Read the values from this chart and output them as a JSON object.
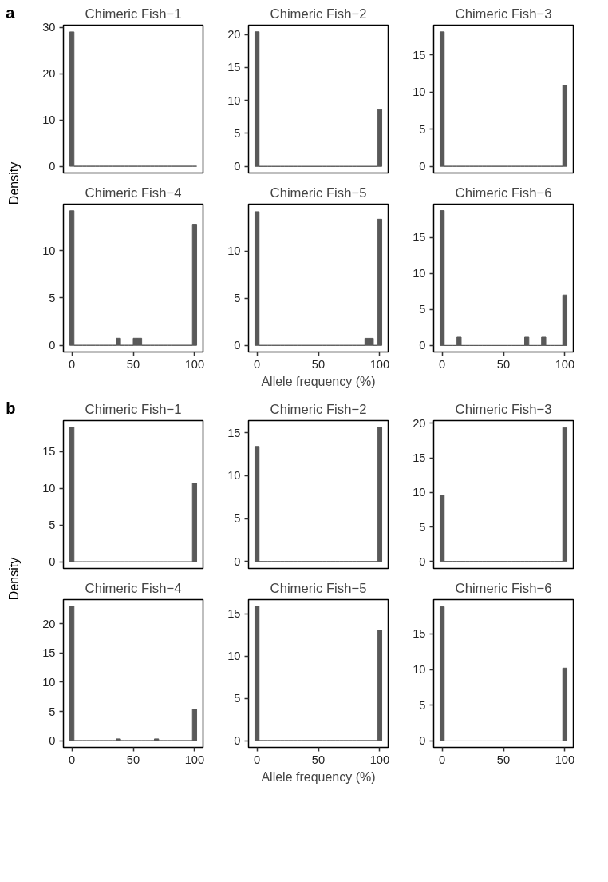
{
  "chart_data": [
    {
      "type": "histogram",
      "title": "Chimeric Fish−1",
      "ylabel": "Density",
      "annotations": [
        "a"
      ],
      "color": "#595959",
      "bins": [
        -1.72,
        1.72,
        5.17,
        8.62,
        12.07,
        15.52,
        18.97,
        22.41,
        25.86,
        29.31,
        32.76,
        36.21,
        39.66,
        43.1,
        46.55,
        50.0,
        53.45,
        56.9,
        60.34,
        63.79,
        67.24,
        70.69,
        74.14,
        77.59,
        81.03,
        84.48,
        87.93,
        91.38,
        94.83,
        98.28,
        101.72
      ],
      "values": [
        29,
        0,
        0,
        0,
        0,
        0,
        0,
        0,
        0,
        0,
        0,
        0,
        0,
        0,
        0,
        0,
        0,
        0,
        0,
        0,
        0,
        0,
        0,
        0,
        0,
        0,
        0,
        0,
        0,
        0
      ],
      "xlim": [
        -6.9,
        106.9
      ],
      "ylim": [
        -1.45,
        30.45
      ],
      "yticks": [
        0,
        10,
        20,
        30
      ],
      "grid": false,
      "tick_labels": "y"
    },
    {
      "type": "histogram",
      "title": "Chimeric Fish−2",
      "color": "#595959",
      "bins": [
        -1.72,
        1.72,
        5.17,
        8.62,
        12.07,
        15.52,
        18.97,
        22.41,
        25.86,
        29.31,
        32.76,
        36.21,
        39.66,
        43.1,
        46.55,
        50.0,
        53.45,
        56.9,
        60.34,
        63.79,
        67.24,
        70.69,
        74.14,
        77.59,
        81.03,
        84.48,
        87.93,
        91.38,
        94.83,
        98.28,
        101.72
      ],
      "values": [
        20.4,
        0,
        0,
        0,
        0,
        0,
        0,
        0,
        0,
        0,
        0,
        0,
        0,
        0,
        0,
        0,
        0,
        0,
        0,
        0,
        0,
        0,
        0,
        0,
        0,
        0,
        0,
        0,
        0,
        8.6
      ],
      "xlim": [
        -6.9,
        106.9
      ],
      "ylim": [
        -1.0,
        21.4
      ],
      "yticks": [
        0,
        5,
        10,
        15,
        20
      ],
      "grid": false,
      "tick_labels": "y"
    },
    {
      "type": "histogram",
      "title": "Chimeric Fish−3",
      "color": "#595959",
      "bins": [
        -1.72,
        1.72,
        5.17,
        8.62,
        12.07,
        15.52,
        18.97,
        22.41,
        25.86,
        29.31,
        32.76,
        36.21,
        39.66,
        43.1,
        46.55,
        50.0,
        53.45,
        56.9,
        60.34,
        63.79,
        67.24,
        70.69,
        74.14,
        77.59,
        81.03,
        84.48,
        87.93,
        91.38,
        94.83,
        98.28,
        101.72
      ],
      "values": [
        18.1,
        0,
        0,
        0,
        0,
        0,
        0,
        0,
        0,
        0,
        0,
        0,
        0,
        0,
        0,
        0,
        0,
        0,
        0,
        0,
        0,
        0,
        0,
        0,
        0,
        0,
        0,
        0,
        0,
        10.9
      ],
      "xlim": [
        -6.9,
        106.9
      ],
      "ylim": [
        -0.9,
        19.0
      ],
      "yticks": [
        0,
        5,
        10,
        15
      ],
      "grid": false,
      "tick_labels": "y"
    },
    {
      "type": "histogram",
      "title": "Chimeric Fish−4",
      "color": "#595959",
      "bins": [
        -1.72,
        1.72,
        5.17,
        8.62,
        12.07,
        15.52,
        18.97,
        22.41,
        25.86,
        29.31,
        32.76,
        36.21,
        39.66,
        43.1,
        46.55,
        50.0,
        53.45,
        56.9,
        60.34,
        63.79,
        67.24,
        70.69,
        74.14,
        77.59,
        81.03,
        84.48,
        87.93,
        91.38,
        94.83,
        98.28,
        101.72
      ],
      "values": [
        14.2,
        0,
        0,
        0,
        0,
        0,
        0,
        0,
        0,
        0,
        0,
        0.75,
        0,
        0,
        0,
        0.75,
        0.75,
        0,
        0,
        0,
        0,
        0,
        0,
        0,
        0,
        0,
        0,
        0,
        0,
        12.7
      ],
      "xlim": [
        -6.9,
        106.9
      ],
      "xticks": [
        0,
        50,
        100
      ],
      "ylim": [
        -0.7,
        14.9
      ],
      "yticks": [
        0,
        5,
        10
      ],
      "grid": false
    },
    {
      "type": "histogram",
      "title": "Chimeric Fish−5",
      "xlabel": "Allele frequency (%)",
      "color": "#595959",
      "bins": [
        -1.72,
        1.72,
        5.17,
        8.62,
        12.07,
        15.52,
        18.97,
        22.41,
        25.86,
        29.31,
        32.76,
        36.21,
        39.66,
        43.1,
        46.55,
        50.0,
        53.45,
        56.9,
        60.34,
        63.79,
        67.24,
        70.69,
        74.14,
        77.59,
        81.03,
        84.48,
        87.93,
        91.38,
        94.83,
        98.28,
        101.72
      ],
      "values": [
        14.2,
        0,
        0,
        0,
        0,
        0,
        0,
        0,
        0,
        0,
        0,
        0,
        0,
        0,
        0,
        0,
        0,
        0,
        0,
        0,
        0,
        0,
        0,
        0,
        0,
        0,
        0.75,
        0.75,
        0,
        13.4
      ],
      "xlim": [
        -6.9,
        106.9
      ],
      "xticks": [
        0,
        50,
        100
      ],
      "ylim": [
        -0.7,
        15.0
      ],
      "yticks": [
        0,
        5,
        10
      ],
      "grid": false
    },
    {
      "type": "histogram",
      "title": "Chimeric Fish−6",
      "color": "#595959",
      "bins": [
        -1.72,
        1.72,
        5.17,
        8.62,
        12.07,
        15.52,
        18.97,
        22.41,
        25.86,
        29.31,
        32.76,
        36.21,
        39.66,
        43.1,
        46.55,
        50.0,
        53.45,
        56.9,
        60.34,
        63.79,
        67.24,
        70.69,
        74.14,
        77.59,
        81.03,
        84.48,
        87.93,
        91.38,
        94.83,
        98.28,
        101.72
      ],
      "values": [
        18.7,
        0,
        0,
        0,
        1.15,
        0,
        0,
        0,
        0,
        0,
        0,
        0,
        0,
        0,
        0,
        0,
        0,
        0,
        0,
        0,
        1.15,
        0,
        0,
        0,
        1.15,
        0,
        0,
        0,
        0,
        7.0
      ],
      "xlim": [
        -6.9,
        106.9
      ],
      "xticks": [
        0,
        50,
        100
      ],
      "ylim": [
        -0.9,
        19.6
      ],
      "yticks": [
        0,
        5,
        10,
        15
      ],
      "grid": false
    },
    {
      "type": "histogram",
      "title": "Chimeric Fish−1",
      "ylabel": "Density",
      "annotations": [
        "b"
      ],
      "color": "#595959",
      "bins": [
        -1.72,
        1.72,
        5.17,
        8.62,
        12.07,
        15.52,
        18.97,
        22.41,
        25.86,
        29.31,
        32.76,
        36.21,
        39.66,
        43.1,
        46.55,
        50.0,
        53.45,
        56.9,
        60.34,
        63.79,
        67.24,
        70.69,
        74.14,
        77.59,
        81.03,
        84.48,
        87.93,
        91.38,
        94.83,
        98.28,
        101.72
      ],
      "values": [
        18.3,
        0,
        0,
        0,
        0,
        0,
        0,
        0,
        0,
        0,
        0,
        0,
        0,
        0,
        0,
        0,
        0,
        0,
        0,
        0,
        0,
        0,
        0,
        0,
        0,
        0,
        0,
        0,
        0,
        10.7
      ],
      "xlim": [
        -6.9,
        106.9
      ],
      "ylim": [
        -0.9,
        19.2
      ],
      "yticks": [
        0,
        5,
        10,
        15
      ],
      "grid": false,
      "tick_labels": "y"
    },
    {
      "type": "histogram",
      "title": "Chimeric Fish−2",
      "color": "#595959",
      "bins": [
        -1.72,
        1.72,
        5.17,
        8.62,
        12.07,
        15.52,
        18.97,
        22.41,
        25.86,
        29.31,
        32.76,
        36.21,
        39.66,
        43.1,
        46.55,
        50.0,
        53.45,
        56.9,
        60.34,
        63.79,
        67.24,
        70.69,
        74.14,
        77.59,
        81.03,
        84.48,
        87.93,
        91.38,
        94.83,
        98.28,
        101.72
      ],
      "values": [
        13.4,
        0,
        0,
        0,
        0,
        0,
        0,
        0,
        0,
        0,
        0,
        0,
        0,
        0,
        0,
        0,
        0,
        0,
        0,
        0,
        0,
        0,
        0,
        0,
        0,
        0,
        0,
        0,
        0,
        15.6
      ],
      "xlim": [
        -6.9,
        106.9
      ],
      "ylim": [
        -0.8,
        16.4
      ],
      "yticks": [
        0,
        5,
        10,
        15
      ],
      "grid": false,
      "tick_labels": "y"
    },
    {
      "type": "histogram",
      "title": "Chimeric Fish−3",
      "color": "#595959",
      "bins": [
        -1.72,
        1.72,
        5.17,
        8.62,
        12.07,
        15.52,
        18.97,
        22.41,
        25.86,
        29.31,
        32.76,
        36.21,
        39.66,
        43.1,
        46.55,
        50.0,
        53.45,
        56.9,
        60.34,
        63.79,
        67.24,
        70.69,
        74.14,
        77.59,
        81.03,
        84.48,
        87.93,
        91.38,
        94.83,
        98.28,
        101.72
      ],
      "values": [
        9.6,
        0,
        0,
        0,
        0,
        0,
        0,
        0,
        0,
        0,
        0,
        0,
        0,
        0,
        0,
        0,
        0,
        0,
        0,
        0,
        0,
        0,
        0,
        0,
        0,
        0,
        0,
        0,
        0,
        19.4
      ],
      "xlim": [
        -6.9,
        106.9
      ],
      "ylim": [
        -1.0,
        20.4
      ],
      "yticks": [
        0,
        5,
        10,
        15,
        20
      ],
      "grid": false,
      "tick_labels": "y"
    },
    {
      "type": "histogram",
      "title": "Chimeric Fish−4",
      "color": "#595959",
      "bins": [
        -1.72,
        1.72,
        5.17,
        8.62,
        12.07,
        15.52,
        18.97,
        22.41,
        25.86,
        29.31,
        32.76,
        36.21,
        39.66,
        43.1,
        46.55,
        50.0,
        53.45,
        56.9,
        60.34,
        63.79,
        67.24,
        70.69,
        74.14,
        77.59,
        81.03,
        84.48,
        87.93,
        91.38,
        94.83,
        98.28,
        101.72
      ],
      "values": [
        23.0,
        0,
        0,
        0,
        0,
        0,
        0,
        0,
        0,
        0,
        0,
        0.3,
        0,
        0,
        0,
        0,
        0,
        0,
        0,
        0,
        0.3,
        0,
        0,
        0,
        0,
        0,
        0,
        0,
        0,
        5.4
      ],
      "xlim": [
        -6.9,
        106.9
      ],
      "xticks": [
        0,
        50,
        100
      ],
      "ylim": [
        -1.15,
        24.15
      ],
      "yticks": [
        0,
        5,
        10,
        15,
        20
      ],
      "grid": false
    },
    {
      "type": "histogram",
      "title": "Chimeric Fish−5",
      "xlabel": "Allele frequency (%)",
      "color": "#595959",
      "bins": [
        -1.72,
        1.72,
        5.17,
        8.62,
        12.07,
        15.52,
        18.97,
        22.41,
        25.86,
        29.31,
        32.76,
        36.21,
        39.66,
        43.1,
        46.55,
        50.0,
        53.45,
        56.9,
        60.34,
        63.79,
        67.24,
        70.69,
        74.14,
        77.59,
        81.03,
        84.48,
        87.93,
        91.38,
        94.83,
        98.28,
        101.72
      ],
      "values": [
        15.9,
        0,
        0,
        0,
        0,
        0,
        0,
        0,
        0,
        0,
        0,
        0,
        0,
        0,
        0,
        0,
        0,
        0,
        0,
        0,
        0,
        0,
        0,
        0,
        0,
        0,
        0,
        0,
        0,
        13.1
      ],
      "xlim": [
        -6.9,
        106.9
      ],
      "xticks": [
        0,
        50,
        100
      ],
      "ylim": [
        -0.8,
        16.7
      ],
      "yticks": [
        0,
        5,
        10,
        15
      ],
      "grid": false
    },
    {
      "type": "histogram",
      "title": "Chimeric Fish−6",
      "color": "#595959",
      "bins": [
        -1.72,
        1.72,
        5.17,
        8.62,
        12.07,
        15.52,
        18.97,
        22.41,
        25.86,
        29.31,
        32.76,
        36.21,
        39.66,
        43.1,
        46.55,
        50.0,
        53.45,
        56.9,
        60.34,
        63.79,
        67.24,
        70.69,
        74.14,
        77.59,
        81.03,
        84.48,
        87.93,
        91.38,
        94.83,
        98.28,
        101.72
      ],
      "values": [
        18.8,
        0,
        0,
        0,
        0,
        0,
        0,
        0,
        0,
        0,
        0,
        0,
        0,
        0,
        0,
        0,
        0,
        0,
        0,
        0,
        0,
        0,
        0,
        0,
        0,
        0,
        0,
        0,
        0,
        10.2
      ],
      "xlim": [
        -6.9,
        106.9
      ],
      "xticks": [
        0,
        50,
        100
      ],
      "ylim": [
        -0.9,
        19.8
      ],
      "yticks": [
        0,
        5,
        10,
        15
      ],
      "grid": false
    }
  ]
}
